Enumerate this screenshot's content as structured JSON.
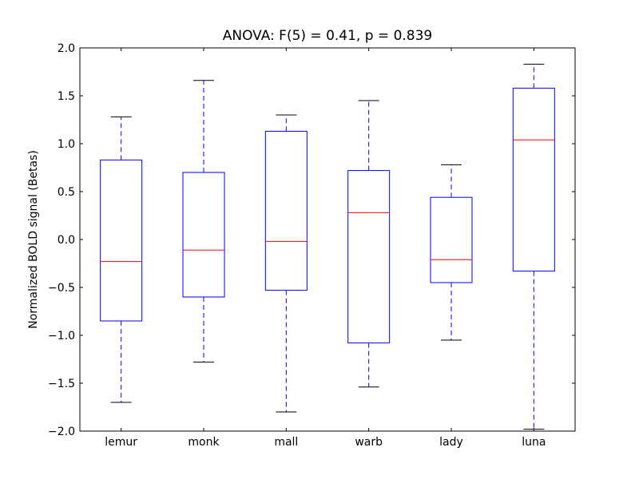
{
  "chart_data": {
    "type": "boxplot",
    "title": "ANOVA: F(5) = 0.41, p = 0.839",
    "xlabel": "",
    "ylabel": "Normalized BOLD signal (Betas)",
    "ylim": [
      -2.0,
      2.0
    ],
    "yticks": [
      "2.0",
      "1.5",
      "1.0",
      "0.5",
      "0.0",
      "−0.5",
      "−1.0",
      "−1.5",
      "−2.0"
    ],
    "ytick_values": [
      2.0,
      1.5,
      1.0,
      0.5,
      0.0,
      -0.5,
      -1.0,
      -1.5,
      -2.0
    ],
    "grid": false,
    "categories": [
      "lemur",
      "monk",
      "mall",
      "warb",
      "lady",
      "luna"
    ],
    "boxes": [
      {
        "whisker_low": -1.7,
        "q1": -0.85,
        "median": -0.23,
        "q3": 0.83,
        "whisker_high": 1.28
      },
      {
        "whisker_low": -1.28,
        "q1": -0.6,
        "median": -0.11,
        "q3": 0.7,
        "whisker_high": 1.66
      },
      {
        "whisker_low": -1.8,
        "q1": -0.53,
        "median": -0.02,
        "q3": 1.13,
        "whisker_high": 1.3
      },
      {
        "whisker_low": -1.54,
        "q1": -1.08,
        "median": 0.28,
        "q3": 0.72,
        "whisker_high": 1.45
      },
      {
        "whisker_low": -1.05,
        "q1": -0.45,
        "median": -0.21,
        "q3": 0.44,
        "whisker_high": 0.78
      },
      {
        "whisker_low": -1.98,
        "q1": -0.33,
        "median": 1.04,
        "q3": 1.58,
        "whisker_high": 1.83
      }
    ],
    "colors": {
      "box": "#0000ff",
      "median": "#ff0000",
      "whisker": "#0000ff",
      "cap": "#000000"
    }
  }
}
